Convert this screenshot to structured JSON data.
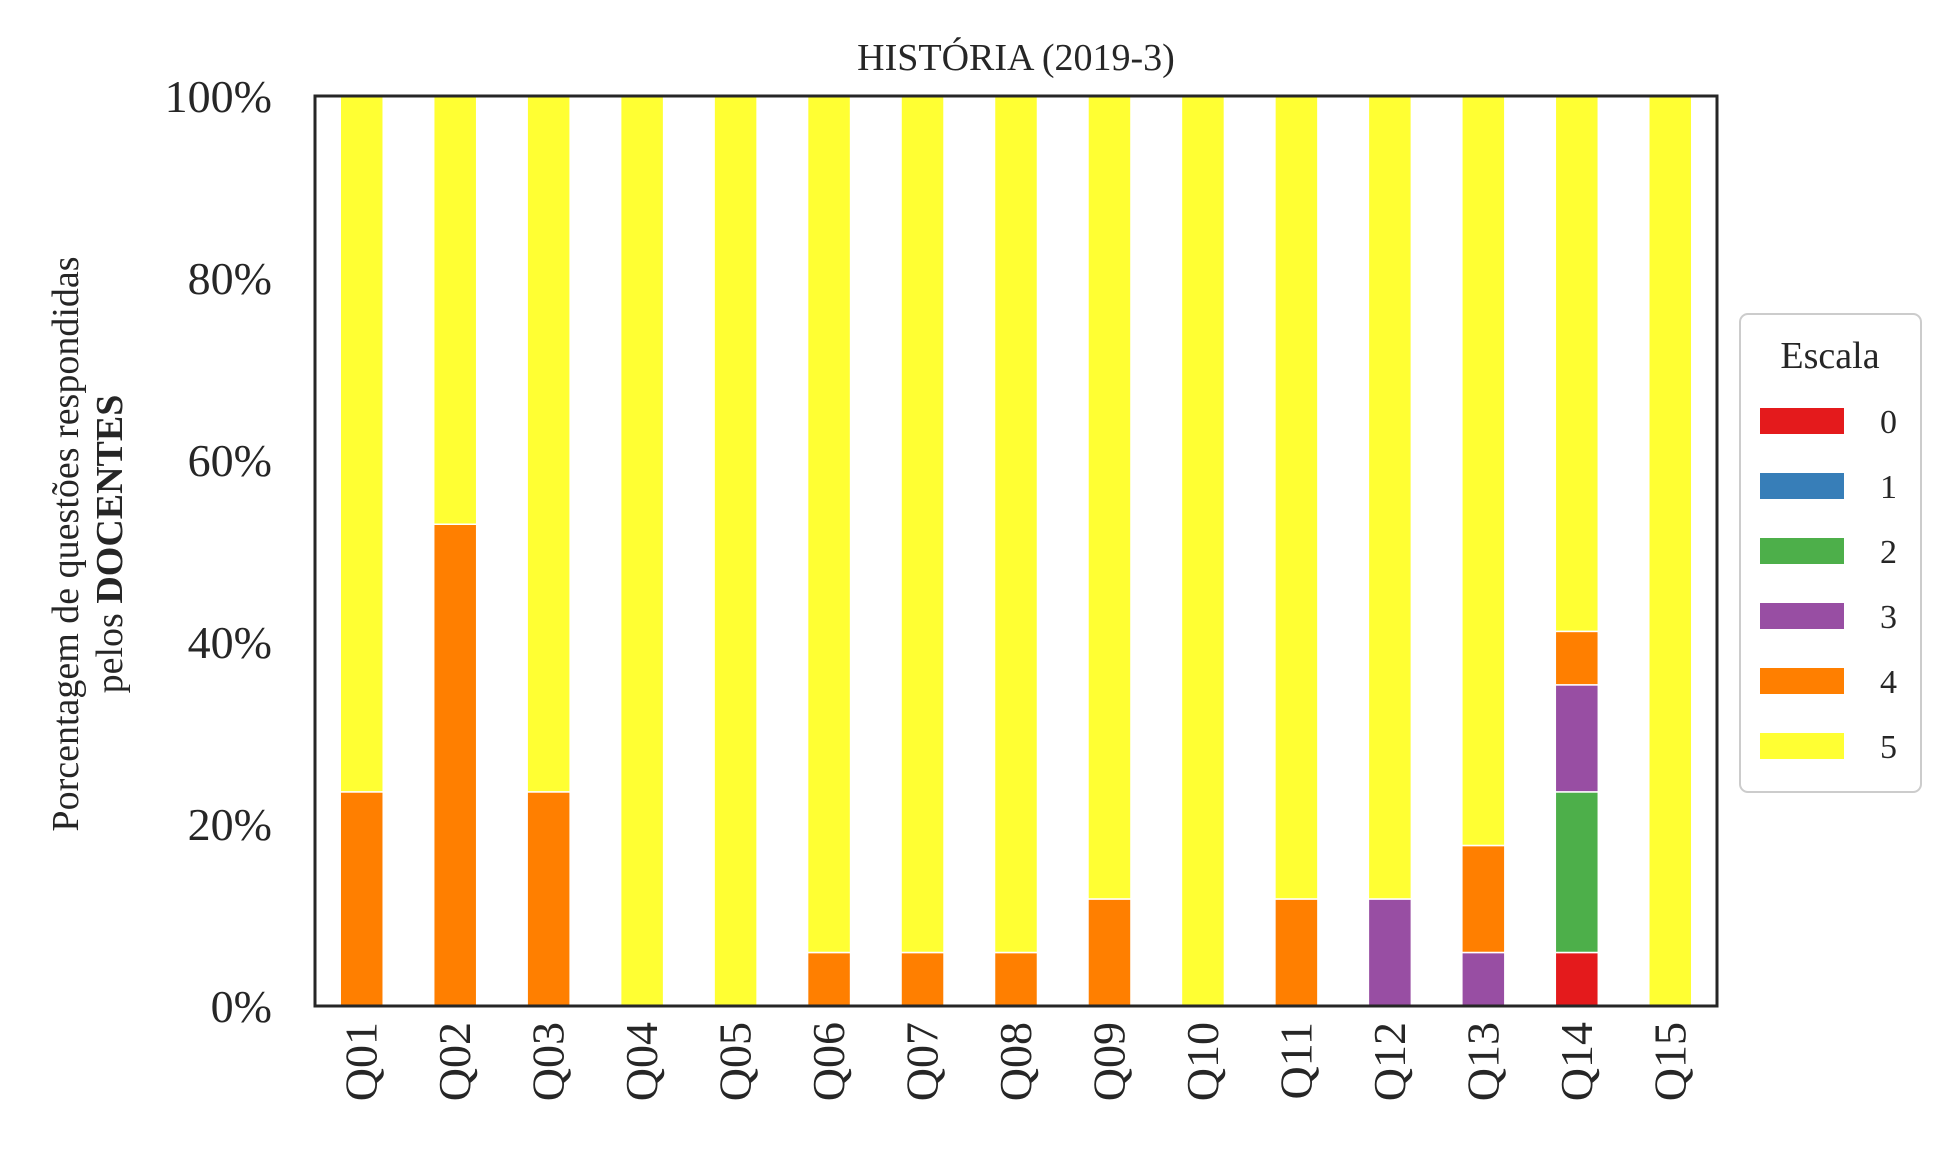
{
  "chart_data": {
    "type": "bar",
    "stacked": true,
    "title": "HISTÓRIA (2019-3)",
    "ylabel_line1": "Porcentagem de questões respondidas",
    "ylabel_line2_prefix": "pelos ",
    "ylabel_line2_bold": "DOCENTES",
    "xlabel": "",
    "ylim": [
      0,
      100
    ],
    "yticks": [
      0,
      20,
      40,
      60,
      80,
      100
    ],
    "ytick_labels": [
      "0%",
      "20%",
      "40%",
      "60%",
      "80%",
      "100%"
    ],
    "grid": false,
    "legend_position": "right",
    "legend_title": "Escala",
    "categories": [
      "Q01",
      "Q02",
      "Q03",
      "Q04",
      "Q05",
      "Q06",
      "Q07",
      "Q08",
      "Q09",
      "Q10",
      "Q11",
      "Q12",
      "Q13",
      "Q14",
      "Q15"
    ],
    "series": [
      {
        "name": "0",
        "color": "#e41a1c",
        "values": [
          0,
          0,
          0,
          0,
          0,
          0,
          0,
          0,
          0,
          0,
          0,
          0,
          0,
          5.88,
          0
        ]
      },
      {
        "name": "1",
        "color": "#377eb8",
        "values": [
          0,
          0,
          0,
          0,
          0,
          0,
          0,
          0,
          0,
          0,
          0,
          0,
          0,
          0,
          0
        ]
      },
      {
        "name": "2",
        "color": "#4daf4a",
        "values": [
          0,
          0,
          0,
          0,
          0,
          0,
          0,
          0,
          0,
          0,
          0,
          0,
          0,
          17.65,
          0
        ]
      },
      {
        "name": "3",
        "color": "#984ea3",
        "values": [
          0,
          0,
          0,
          0,
          0,
          0,
          0,
          0,
          0,
          0,
          0,
          11.76,
          5.88,
          11.76,
          0
        ]
      },
      {
        "name": "4",
        "color": "#ff7f00",
        "values": [
          23.53,
          52.94,
          23.53,
          0,
          0,
          5.88,
          5.88,
          5.88,
          11.76,
          0,
          11.76,
          0,
          11.76,
          5.88,
          0
        ]
      },
      {
        "name": "5",
        "color": "#ffff33",
        "values": [
          76.47,
          47.06,
          76.47,
          100,
          100,
          94.12,
          94.12,
          94.12,
          88.24,
          100,
          88.24,
          88.24,
          82.35,
          58.82,
          100
        ]
      }
    ]
  }
}
